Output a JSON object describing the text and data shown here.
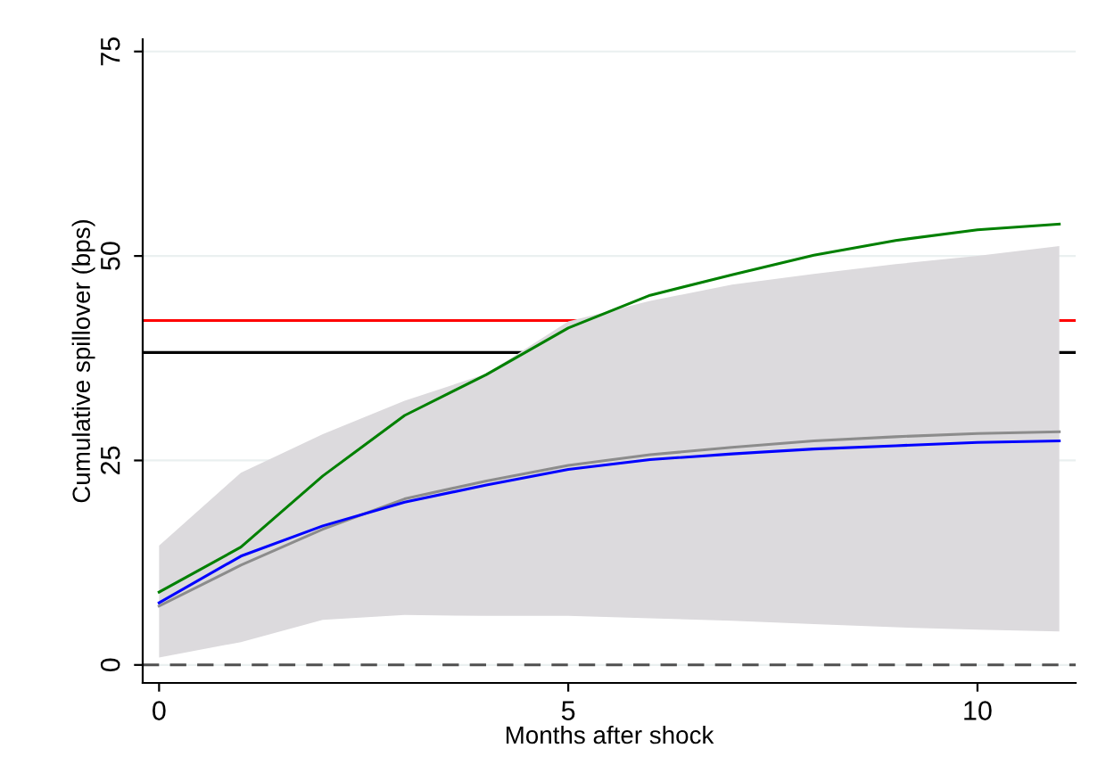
{
  "chart_data": {
    "type": "line",
    "xlabel": "Months after shock",
    "ylabel": "Cumulative spillover (bps)",
    "x": [
      0,
      1,
      2,
      3,
      4,
      5,
      6,
      7,
      8,
      9,
      10,
      11
    ],
    "xlim": [
      -0.2,
      11.2
    ],
    "xticks": [
      0,
      5,
      10
    ],
    "ylim": [
      -2.2,
      76.5
    ],
    "yticks": [
      0,
      25,
      50,
      75
    ],
    "grid": "y",
    "legend": false,
    "series": [
      {
        "color": "#8c8c8c",
        "values": [
          7.2,
          12.2,
          16.6,
          20.3,
          22.5,
          24.4,
          25.7,
          26.6,
          27.4,
          27.9,
          28.3,
          28.5
        ],
        "lower": [
          0.9,
          2.8,
          5.5,
          6.1,
          6.0,
          6.0,
          5.7,
          5.4,
          5.0,
          4.6,
          4.3,
          4.1
        ],
        "upper": [
          14.6,
          23.5,
          28.2,
          32.3,
          35.6,
          42.0,
          44.5,
          46.5,
          47.8,
          49.0,
          50.0,
          51.2
        ]
      },
      {
        "color": "#0000ff",
        "values": [
          7.6,
          13.3,
          17.0,
          19.9,
          22.0,
          23.9,
          25.1,
          25.8,
          26.4,
          26.8,
          27.2,
          27.4
        ]
      },
      {
        "color": "#008000",
        "values": [
          8.9,
          14.4,
          23.1,
          30.5,
          35.5,
          41.2,
          45.2,
          47.7,
          50.1,
          51.9,
          53.2,
          53.9
        ]
      }
    ],
    "ref_lines": [
      {
        "axis": "y",
        "value": 42.1,
        "color": "#ff0000",
        "line_style": "solid"
      },
      {
        "axis": "y",
        "value": 38.2,
        "color": "#000000",
        "line_style": "solid"
      },
      {
        "axis": "y",
        "value": 0,
        "color": "#505050",
        "line_style": "dashed"
      }
    ]
  }
}
